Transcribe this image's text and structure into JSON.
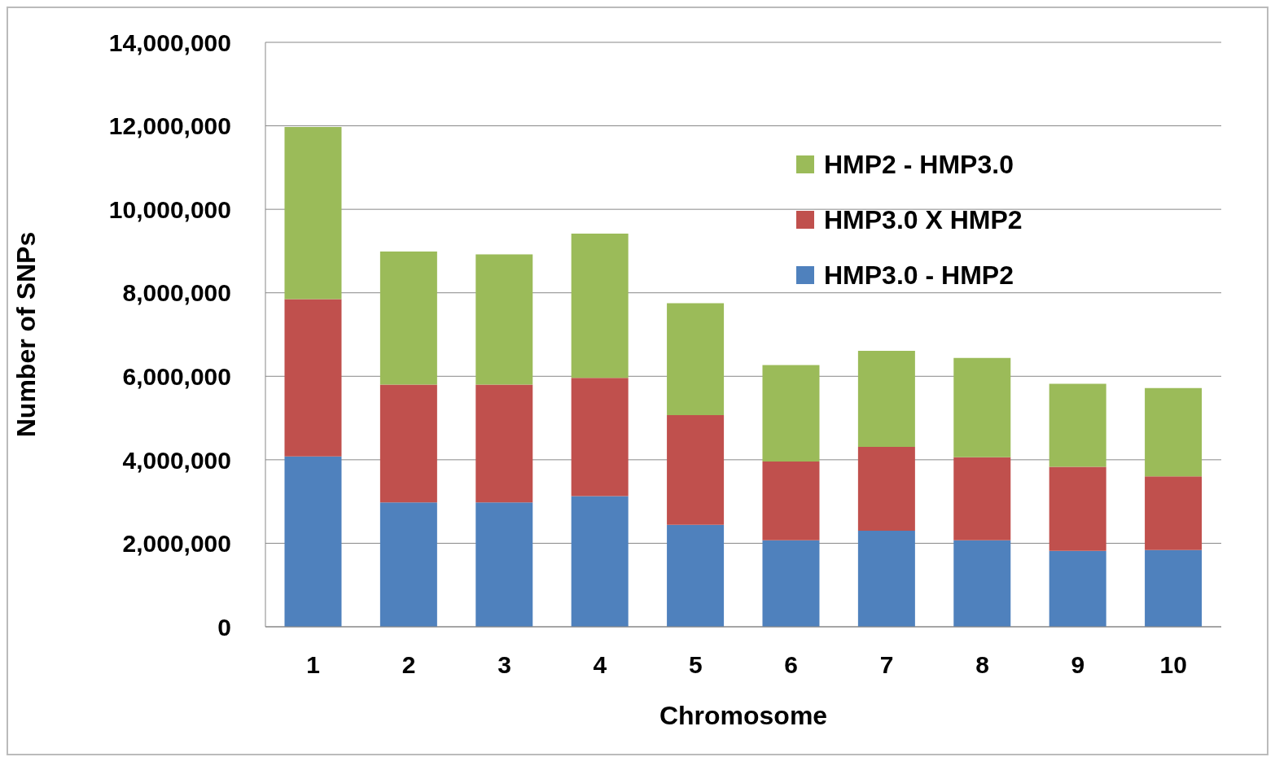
{
  "chart_data": {
    "type": "bar",
    "stacked": true,
    "xlabel": "Chromosome",
    "ylabel": "Number of SNPs",
    "categories": [
      "1",
      "2",
      "3",
      "4",
      "5",
      "6",
      "7",
      "8",
      "9",
      "10"
    ],
    "series": [
      {
        "name": "HMP3.0 - HMP2",
        "color": "#4f81bd",
        "values": [
          4080000,
          2980000,
          2980000,
          3130000,
          2440000,
          2070000,
          2300000,
          2070000,
          1820000,
          1840000
        ]
      },
      {
        "name": "HMP3.0 X HMP2",
        "color": "#c0504d",
        "values": [
          3770000,
          2820000,
          2820000,
          2830000,
          2630000,
          1890000,
          2010000,
          1990000,
          2010000,
          1760000
        ]
      },
      {
        "name": "HMP2 - HMP3.0",
        "color": "#9bbb59",
        "values": [
          4120000,
          3190000,
          3120000,
          3460000,
          2680000,
          2310000,
          2300000,
          2380000,
          1990000,
          2120000
        ]
      }
    ],
    "ylim": [
      0,
      14000000
    ],
    "yticks": [
      0,
      {
        "value": 2000000,
        "label": "2,000,000"
      },
      {
        "value": 4000000,
        "label": "4,000,000"
      },
      {
        "value": 6000000,
        "label": "6,000,000"
      },
      {
        "value": 8000000,
        "label": "8,000,000"
      },
      {
        "value": 10000000,
        "label": "10,000,000"
      },
      {
        "value": 12000000,
        "label": "12,000,000"
      },
      {
        "value": 14000000,
        "label": "14,000,000"
      }
    ],
    "grid": "y",
    "legend": "top right"
  }
}
